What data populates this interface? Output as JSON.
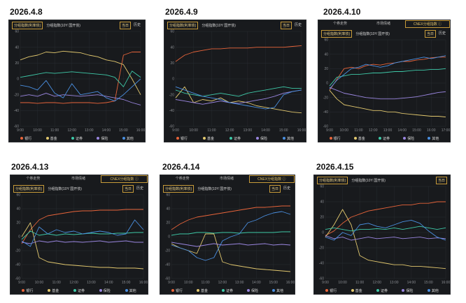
{
  "colors": {
    "bank": "#e8643a",
    "fund": "#e2c86e",
    "broker": "#3ec9a8",
    "insurance": "#9a86e0",
    "other": "#4a8fe0",
    "grid": "#2b2e33",
    "axis": "#8a8d92"
  },
  "legend": [
    {
      "key": "bank",
      "label": "银行",
      "color": "#e8643a"
    },
    {
      "key": "fund",
      "label": "基金",
      "color": "#e2c86e"
    },
    {
      "key": "broker",
      "label": "证券",
      "color": "#3ec9a8"
    },
    {
      "key": "insurance",
      "label": "保险",
      "color": "#9a86e0"
    },
    {
      "key": "other",
      "label": "其他",
      "color": "#4a8fe0"
    }
  ],
  "chart_data": [
    {
      "type": "line",
      "date": "2026.4.8",
      "top_tabs": [],
      "toolbar_options": [
        "分组指数(利率债)",
        "分组指数(10Y 国开债)"
      ],
      "toolbar_selected": 0,
      "view_buttons": [
        "当日",
        "历史"
      ],
      "yticks": [
        "60",
        "40",
        "20",
        "0",
        "-20",
        "-40",
        "-60"
      ],
      "xticks": [
        "9:00",
        "10:00",
        "11:00",
        "12:00",
        "13:00",
        "14:00",
        "15:00",
        "16:00"
      ],
      "ylim": [
        -60,
        60
      ],
      "x": [
        9,
        9.5,
        10,
        10.5,
        11,
        11.5,
        12,
        12.5,
        13,
        13.5,
        14,
        14.5,
        15,
        15.5,
        16
      ],
      "series": [
        {
          "key": "bank",
          "values": [
            -30,
            -30,
            -31,
            -30,
            -30,
            -31,
            -30,
            -30,
            -30,
            -31,
            -30,
            -28,
            30,
            34,
            34
          ]
        },
        {
          "key": "fund",
          "values": [
            24,
            28,
            30,
            34,
            33,
            35,
            34,
            33,
            30,
            28,
            24,
            22,
            18,
            0,
            -20
          ]
        },
        {
          "key": "broker",
          "values": [
            2,
            4,
            6,
            8,
            7,
            8,
            9,
            8,
            7,
            6,
            5,
            2,
            -10,
            10,
            2
          ]
        },
        {
          "key": "insurance",
          "values": [
            -22,
            -20,
            -22,
            -18,
            -22,
            -20,
            -21,
            -22,
            -21,
            -20,
            -22,
            -24,
            -26,
            -30,
            -33
          ]
        },
        {
          "key": "other",
          "values": [
            -8,
            -10,
            -14,
            -2,
            -18,
            -24,
            -6,
            -20,
            -18,
            -16,
            -24,
            -28,
            -20,
            -10,
            0
          ]
        }
      ]
    },
    {
      "type": "line",
      "date": "2026.4.9",
      "top_tabs": [],
      "toolbar_options": [
        "分组指数(利率债)",
        "分组指数(10Y 国开债)"
      ],
      "toolbar_selected": 0,
      "view_buttons": [
        "当日",
        "历史"
      ],
      "yticks": [
        "60",
        "40",
        "20",
        "0",
        "-20",
        "-40",
        "-60"
      ],
      "xticks": [
        "9:00",
        "10:00",
        "11:00",
        "12:00",
        "13:00",
        "14:00",
        "15:00",
        "16:00"
      ],
      "ylim": [
        -60,
        60
      ],
      "x": [
        9,
        9.5,
        10,
        10.5,
        11,
        11.5,
        12,
        12.5,
        13,
        13.5,
        14,
        14.5,
        15,
        15.5,
        16
      ],
      "series": [
        {
          "key": "bank",
          "values": [
            22,
            30,
            34,
            36,
            38,
            38,
            39,
            39,
            39,
            40,
            40,
            40,
            40,
            41,
            42
          ]
        },
        {
          "key": "fund",
          "values": [
            -24,
            -10,
            -30,
            -26,
            -28,
            -24,
            -30,
            -28,
            -30,
            -34,
            -36,
            -38,
            -40,
            -42,
            -43
          ]
        },
        {
          "key": "broker",
          "values": [
            -14,
            -18,
            -20,
            -22,
            -20,
            -18,
            -20,
            -22,
            -18,
            -16,
            -14,
            -12,
            -10,
            -12,
            -12
          ]
        },
        {
          "key": "insurance",
          "values": [
            -26,
            -28,
            -30,
            -32,
            -30,
            -28,
            -30,
            -31,
            -29,
            -27,
            -25,
            -22,
            -18,
            -16,
            -14
          ]
        },
        {
          "key": "other",
          "values": [
            -10,
            -14,
            -18,
            -22,
            -24,
            -26,
            -30,
            -32,
            -34,
            -36,
            -38,
            -36,
            -20,
            -16,
            -14
          ]
        }
      ]
    },
    {
      "type": "line",
      "date": "2026.4.10",
      "top_tabs": [
        "个券走势",
        "市场情绪",
        "CNEX分组指数 ⓘ"
      ],
      "toolbar_options": [
        "分组指数(利率债)",
        "分组指数(10Y 国开债)"
      ],
      "toolbar_selected": 0,
      "view_buttons": [
        "当日",
        "历史"
      ],
      "yticks": [
        "60",
        "40",
        "20",
        "0",
        "-20",
        "-40",
        "-60"
      ],
      "xticks": [
        "9:00",
        "10:00",
        "11:00",
        "12:00",
        "13:00",
        "14:00",
        "15:00",
        "16:00",
        "17:00"
      ],
      "ylim": [
        -60,
        60
      ],
      "x": [
        9,
        9.5,
        10,
        10.5,
        11,
        11.5,
        12,
        12.5,
        13,
        13.5,
        14,
        14.5,
        15,
        15.5,
        16,
        16.5,
        17
      ],
      "series": [
        {
          "key": "bank",
          "values": [
            -10,
            5,
            20,
            22,
            20,
            24,
            26,
            25,
            27,
            28,
            30,
            30,
            32,
            33,
            35,
            36,
            36
          ]
        },
        {
          "key": "fund",
          "values": [
            -10,
            -22,
            -30,
            -32,
            -34,
            -36,
            -38,
            -38,
            -40,
            -40,
            -42,
            -43,
            -44,
            -45,
            -46,
            -46,
            -47
          ]
        },
        {
          "key": "broker",
          "values": [
            -4,
            8,
            10,
            12,
            12,
            13,
            14,
            14,
            15,
            16,
            16,
            17,
            18,
            18,
            19,
            19,
            20
          ]
        },
        {
          "key": "insurance",
          "values": [
            -6,
            -10,
            -14,
            -16,
            -18,
            -20,
            -21,
            -22,
            -22,
            -22,
            -21,
            -20,
            -19,
            -17,
            -15,
            -13,
            -12
          ]
        },
        {
          "key": "other",
          "values": [
            -8,
            4,
            12,
            20,
            22,
            26,
            24,
            22,
            24,
            28,
            30,
            32,
            34,
            36,
            34,
            36,
            38
          ]
        }
      ]
    },
    {
      "type": "line",
      "date": "2026.4.13",
      "top_tabs": [
        "个券走势",
        "市场情绪",
        "CNEX分组指数 ⓘ"
      ],
      "toolbar_options": [
        "分组指数(利率债)",
        "分组指数(10Y 国开债)"
      ],
      "toolbar_selected": 0,
      "view_buttons": [
        "当日",
        "历史"
      ],
      "yticks": [
        "60",
        "40",
        "20",
        "0",
        "-20",
        "-40",
        "-60"
      ],
      "xticks": [
        "9:00",
        "10:00",
        "11:00",
        "12:00",
        "13:00",
        "14:00",
        "15:00",
        "16:00"
      ],
      "ylim": [
        -60,
        60
      ],
      "x": [
        9,
        9.5,
        10,
        10.5,
        11,
        11.5,
        12,
        12.5,
        13,
        13.5,
        14,
        14.5,
        15,
        15.5,
        16
      ],
      "series": [
        {
          "key": "bank",
          "values": [
            -10,
            10,
            24,
            30,
            32,
            34,
            36,
            37,
            37,
            38,
            38,
            38,
            39,
            39,
            39
          ]
        },
        {
          "key": "fund",
          "values": [
            0,
            20,
            -30,
            -36,
            -38,
            -40,
            -41,
            -42,
            -43,
            -44,
            -44,
            -45,
            -45,
            -45,
            -46
          ]
        },
        {
          "key": "broker",
          "values": [
            -4,
            8,
            2,
            4,
            2,
            4,
            3,
            4,
            5,
            4,
            4,
            5,
            5,
            6,
            6
          ]
        },
        {
          "key": "insurance",
          "values": [
            -8,
            -10,
            -6,
            -8,
            -6,
            -8,
            -7,
            -8,
            -7,
            -6,
            -8,
            -7,
            -6,
            -8,
            -8
          ]
        },
        {
          "key": "other",
          "values": [
            -6,
            -14,
            14,
            4,
            10,
            6,
            8,
            4,
            6,
            8,
            6,
            2,
            4,
            24,
            10
          ]
        }
      ]
    },
    {
      "type": "line",
      "date": "2026.4.14",
      "top_tabs": [
        "个券走势",
        "市场情绪",
        "CNEX分组指数 ⓘ"
      ],
      "toolbar_options": [
        "分组指数(利率债)",
        "分组指数(10Y 国开债)"
      ],
      "toolbar_selected": 0,
      "view_buttons": [
        "当日",
        "历史"
      ],
      "yticks": [
        "60",
        "40",
        "20",
        "0",
        "-20",
        "-40",
        "-60"
      ],
      "xticks": [
        "9:00",
        "10:00",
        "11:00",
        "12:00",
        "13:00",
        "14:00",
        "15:00",
        "16:00"
      ],
      "ylim": [
        -60,
        60
      ],
      "x": [
        9,
        9.5,
        10,
        10.5,
        11,
        11.5,
        12,
        12.5,
        13,
        13.5,
        14,
        14.5,
        15,
        15.5,
        16
      ],
      "series": [
        {
          "key": "bank",
          "values": [
            10,
            18,
            24,
            28,
            30,
            32,
            34,
            36,
            38,
            40,
            42,
            42,
            43,
            44,
            44
          ]
        },
        {
          "key": "fund",
          "values": [
            -10,
            -16,
            -20,
            -24,
            4,
            4,
            -36,
            -40,
            -42,
            -44,
            -46,
            -47,
            -48,
            -49,
            -50
          ]
        },
        {
          "key": "broker",
          "values": [
            2,
            4,
            4,
            6,
            6,
            5,
            6,
            6,
            5,
            6,
            6,
            6,
            6,
            7,
            7
          ]
        },
        {
          "key": "insurance",
          "values": [
            -8,
            -10,
            -12,
            -14,
            -12,
            -10,
            -12,
            -11,
            -10,
            -12,
            -11,
            -10,
            -12,
            -11,
            -12
          ]
        },
        {
          "key": "other",
          "values": [
            -12,
            -16,
            -20,
            -30,
            -34,
            -30,
            -6,
            0,
            4,
            20,
            24,
            30,
            34,
            36,
            32
          ]
        }
      ]
    },
    {
      "type": "line",
      "date": "2026.4.15",
      "top_tabs": [],
      "toolbar_options": [
        "分组指数(利率债)",
        "分组指数(10Y 国开债)"
      ],
      "toolbar_selected": 0,
      "view_buttons": [
        "当日"
      ],
      "yticks": [
        "60",
        "40",
        "20",
        "0",
        "-20",
        "-40",
        "-60"
      ],
      "xticks": [
        "9:00",
        "10:00",
        "11:00",
        "12:00",
        "13:00",
        "14:00",
        "15:00",
        "16:00"
      ],
      "ylim": [
        -60,
        60
      ],
      "x": [
        9,
        9.5,
        10,
        10.5,
        11,
        11.5,
        12,
        12.5,
        13,
        13.5,
        14,
        14.5,
        15,
        15.5,
        16
      ],
      "series": [
        {
          "key": "bank",
          "values": [
            -4,
            2,
            12,
            20,
            24,
            28,
            30,
            32,
            34,
            36,
            36,
            38,
            38,
            40,
            40
          ]
        },
        {
          "key": "fund",
          "values": [
            -6,
            10,
            30,
            10,
            -30,
            -36,
            -38,
            -40,
            -42,
            -42,
            -44,
            -44,
            -45,
            -46,
            -47
          ]
        },
        {
          "key": "broker",
          "values": [
            4,
            6,
            4,
            2,
            4,
            4,
            5,
            4,
            6,
            4,
            6,
            8,
            6,
            4,
            6
          ]
        },
        {
          "key": "insurance",
          "values": [
            -4,
            -8,
            -6,
            -10,
            -8,
            -6,
            -8,
            -7,
            -6,
            -8,
            -7,
            -6,
            -8,
            -7,
            -8
          ]
        },
        {
          "key": "other",
          "values": [
            -6,
            -10,
            0,
            -4,
            10,
            12,
            8,
            6,
            10,
            14,
            16,
            12,
            2,
            -6,
            -10
          ]
        }
      ]
    }
  ]
}
